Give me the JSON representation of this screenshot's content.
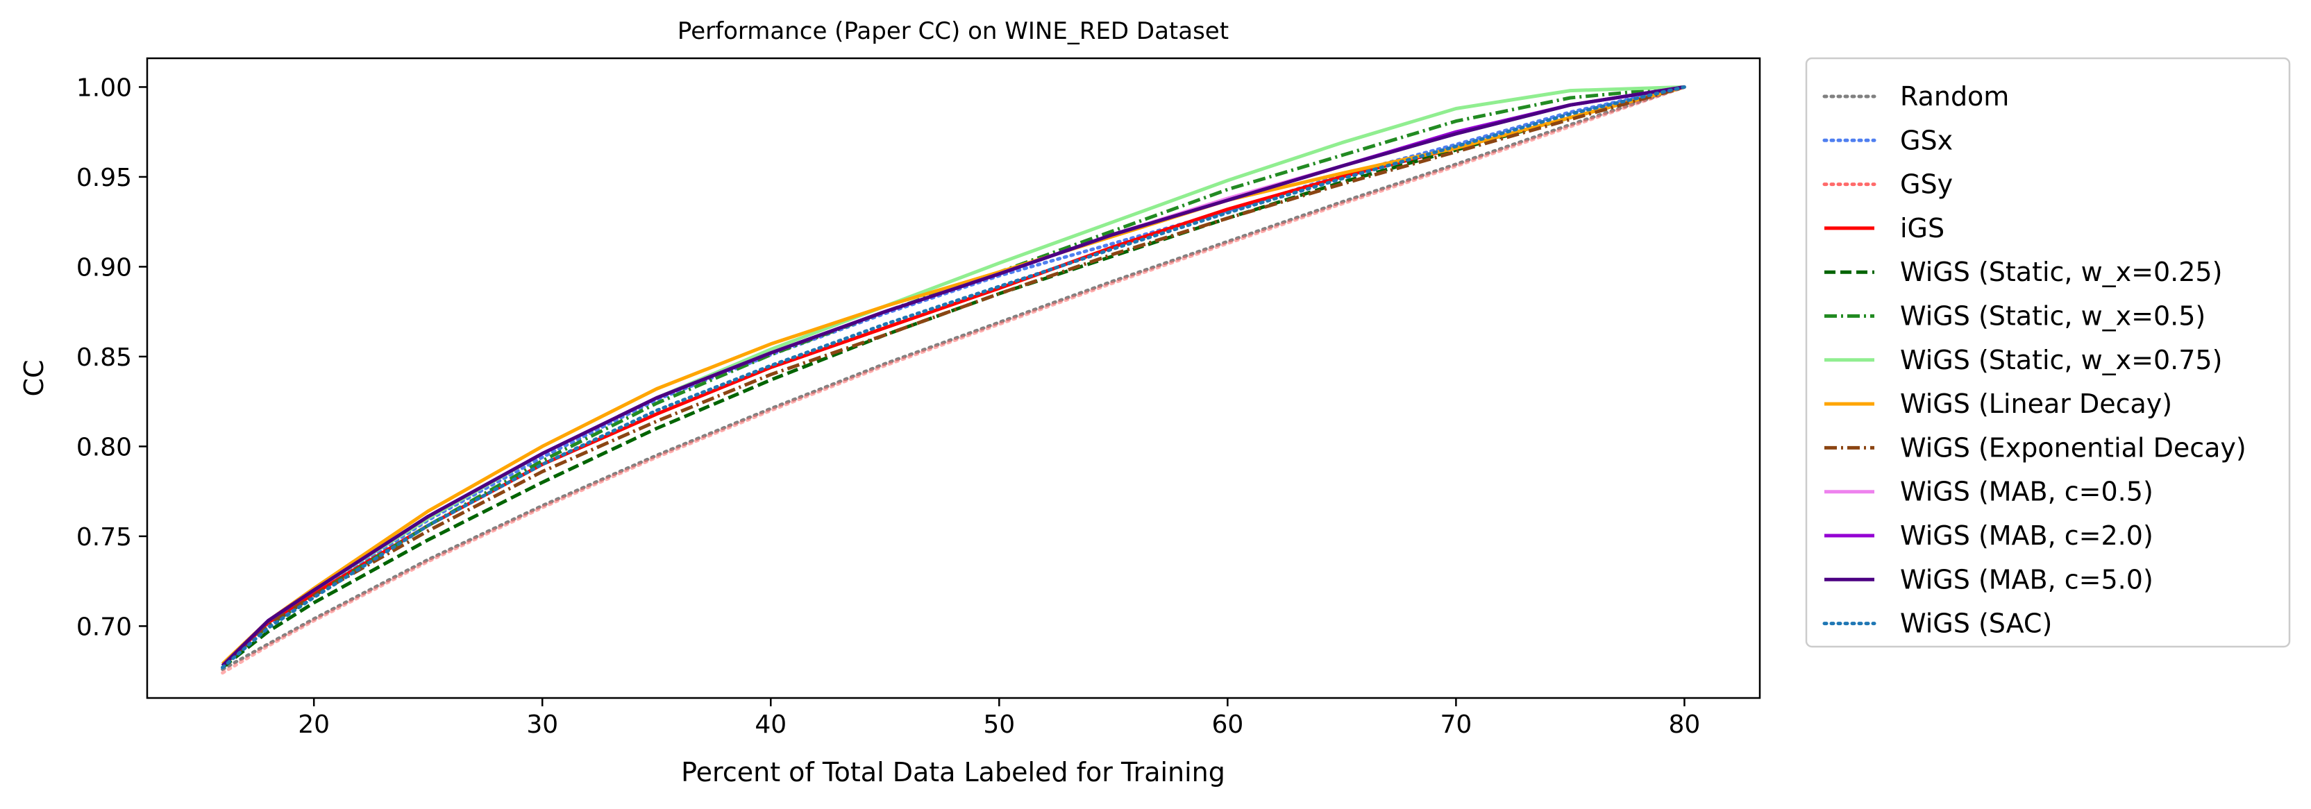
{
  "chart_data": {
    "type": "line",
    "title": "Performance (Paper CC) on WINE_RED Dataset",
    "xlabel": "Percent of Total Data Labeled for Training",
    "ylabel": "CC",
    "xlim": [
      12.7,
      83.3
    ],
    "ylim": [
      0.66,
      1.016
    ],
    "xticks": [
      20,
      30,
      40,
      50,
      60,
      70,
      80
    ],
    "yticks": [
      0.7,
      0.75,
      0.8,
      0.85,
      0.9,
      0.95,
      1.0
    ],
    "xtick_labels": [
      "20",
      "30",
      "40",
      "50",
      "60",
      "70",
      "80"
    ],
    "ytick_labels": [
      "0.70",
      "0.75",
      "0.80",
      "0.85",
      "0.90",
      "0.95",
      "1.00"
    ],
    "grid": false,
    "legend_position": "outside-right",
    "x": [
      16,
      18,
      20,
      25,
      30,
      35,
      40,
      45,
      50,
      55,
      60,
      65,
      70,
      75,
      80
    ],
    "series": [
      {
        "name": "Random",
        "color": "#808080",
        "dash": "dotted",
        "values": [
          0.676,
          0.69,
          0.704,
          0.737,
          0.767,
          0.795,
          0.821,
          0.846,
          0.869,
          0.892,
          0.914,
          0.936,
          0.957,
          0.979,
          1.0
        ]
      },
      {
        "name": "GSx",
        "color": "#4f7ff0",
        "dash": "dotted",
        "values": [
          0.677,
          0.7,
          0.718,
          0.759,
          0.794,
          0.826,
          0.851,
          0.874,
          0.895,
          0.913,
          0.931,
          0.951,
          0.968,
          0.986,
          1.0
        ]
      },
      {
        "name": "GSy",
        "color": "#ff6a6a",
        "dash": "dotted",
        "values": [
          0.674,
          0.689,
          0.703,
          0.736,
          0.766,
          0.794,
          0.82,
          0.845,
          0.868,
          0.891,
          0.913,
          0.935,
          0.956,
          0.978,
          1.0
        ]
      },
      {
        "name": "iGS",
        "color": "#ff0000",
        "dash": "solid",
        "values": [
          0.678,
          0.702,
          0.718,
          0.756,
          0.79,
          0.818,
          0.844,
          0.866,
          0.888,
          0.911,
          0.932,
          0.95,
          0.966,
          0.983,
          1.0
        ]
      },
      {
        "name": "WiGS (Static, w_x=0.25)",
        "color": "#006400",
        "dash": "dashed",
        "values": [
          0.677,
          0.697,
          0.713,
          0.748,
          0.78,
          0.81,
          0.837,
          0.862,
          0.885,
          0.906,
          0.927,
          0.947,
          0.965,
          0.983,
          1.0
        ]
      },
      {
        "name": "WiGS (Static, w_x=0.5)",
        "color": "#228b22",
        "dash": "dashdot",
        "values": [
          0.678,
          0.7,
          0.717,
          0.756,
          0.792,
          0.824,
          0.851,
          0.875,
          0.897,
          0.92,
          0.943,
          0.962,
          0.981,
          0.994,
          1.0
        ]
      },
      {
        "name": "WiGS (Static, w_x=0.75)",
        "color": "#90ee90",
        "dash": "solid",
        "values": [
          0.678,
          0.703,
          0.72,
          0.76,
          0.796,
          0.827,
          0.854,
          0.878,
          0.902,
          0.925,
          0.948,
          0.969,
          0.988,
          0.998,
          1.0
        ]
      },
      {
        "name": "WiGS (Linear Decay)",
        "color": "#ffa500",
        "dash": "solid",
        "values": [
          0.679,
          0.703,
          0.721,
          0.764,
          0.8,
          0.832,
          0.857,
          0.878,
          0.897,
          0.917,
          0.937,
          0.952,
          0.966,
          0.983,
          1.0
        ]
      },
      {
        "name": "WiGS (Exponential Decay)",
        "color": "#8b4513",
        "dash": "dashdot",
        "values": [
          0.678,
          0.701,
          0.717,
          0.753,
          0.786,
          0.814,
          0.84,
          0.862,
          0.885,
          0.907,
          0.927,
          0.946,
          0.964,
          0.982,
          1.0
        ]
      },
      {
        "name": "WiGS (MAB, c=0.5)",
        "color": "#ee82ee",
        "dash": "solid",
        "values": [
          0.678,
          0.703,
          0.72,
          0.761,
          0.796,
          0.827,
          0.852,
          0.875,
          0.896,
          0.918,
          0.938,
          0.956,
          0.975,
          0.99,
          1.0
        ]
      },
      {
        "name": "WiGS (MAB, c=2.0)",
        "color": "#9400d3",
        "dash": "solid",
        "values": [
          0.678,
          0.703,
          0.72,
          0.761,
          0.796,
          0.827,
          0.852,
          0.875,
          0.896,
          0.918,
          0.937,
          0.956,
          0.975,
          0.99,
          1.0
        ]
      },
      {
        "name": "WiGS (MAB, c=5.0)",
        "color": "#4b0082",
        "dash": "solid",
        "values": [
          0.678,
          0.703,
          0.72,
          0.761,
          0.796,
          0.827,
          0.852,
          0.875,
          0.896,
          0.918,
          0.937,
          0.956,
          0.974,
          0.99,
          1.0
        ]
      },
      {
        "name": "WiGS (SAC)",
        "color": "#1f77b4",
        "dash": "dotted",
        "values": [
          0.677,
          0.699,
          0.716,
          0.756,
          0.79,
          0.82,
          0.845,
          0.868,
          0.889,
          0.91,
          0.93,
          0.949,
          0.967,
          0.985,
          1.0
        ]
      }
    ]
  }
}
